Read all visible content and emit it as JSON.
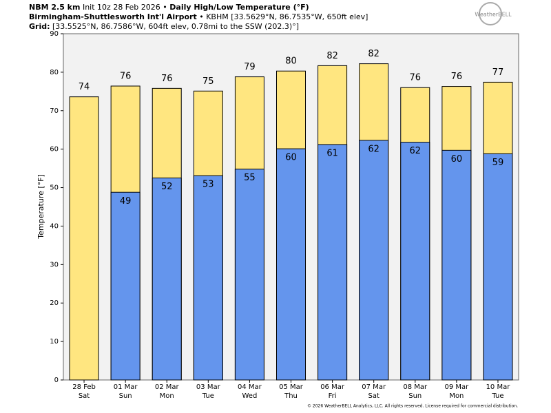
{
  "header": {
    "model": "NBM 2.5 km",
    "init": "Init 10z 28 Feb 2026",
    "product": "Daily High/Low Temperature (°F)",
    "station": "Birmingham-Shuttlesworth Int'l Airport",
    "station_info": "KBHM [33.5629°N, 86.7535°W, 650ft elev]",
    "grid_label": "Grid:",
    "grid_info": "[33.5525°N, 86.7586°W, 604ft elev, 0.78mi to the SSW (202.3)°]",
    "logo": "WeatherBELL"
  },
  "chart_data": {
    "type": "bar",
    "y_label": "Temperature [°F]",
    "categories": [
      "28 Feb",
      "01 Mar",
      "02 Mar",
      "03 Mar",
      "04 Mar",
      "05 Mar",
      "06 Mar",
      "07 Mar",
      "08 Mar",
      "09 Mar",
      "10 Mar"
    ],
    "category_days": [
      "Sat",
      "Sun",
      "Mon",
      "Tue",
      "Wed",
      "Thu",
      "Fri",
      "Sat",
      "Sun",
      "Mon",
      "Tue"
    ],
    "series": [
      {
        "name": "High",
        "color": "#ffe680",
        "values": [
          73.6,
          76.4,
          75.8,
          75.1,
          78.8,
          80.3,
          81.7,
          82.2,
          76.0,
          76.3,
          77.4
        ],
        "value_labels": [
          "74",
          "76",
          "76",
          "75",
          "79",
          "80",
          "82",
          "82",
          "76",
          "76",
          "77"
        ]
      },
      {
        "name": "Low",
        "color": "#6495ed",
        "values": [
          null,
          48.8,
          52.5,
          53.1,
          54.8,
          60.1,
          61.2,
          62.3,
          61.8,
          59.7,
          58.8
        ],
        "value_labels": [
          null,
          "49",
          "52",
          "53",
          "55",
          "60",
          "61",
          "62",
          "62",
          "60",
          "59"
        ]
      }
    ],
    "ylim": [
      0,
      90
    ],
    "yticks": [
      0,
      10,
      20,
      30,
      40,
      50,
      60,
      70,
      80,
      90
    ]
  },
  "footer": "© 2026 WeatherBELL Analytics, LLC. All rights reserved. License required for commercial distribution."
}
